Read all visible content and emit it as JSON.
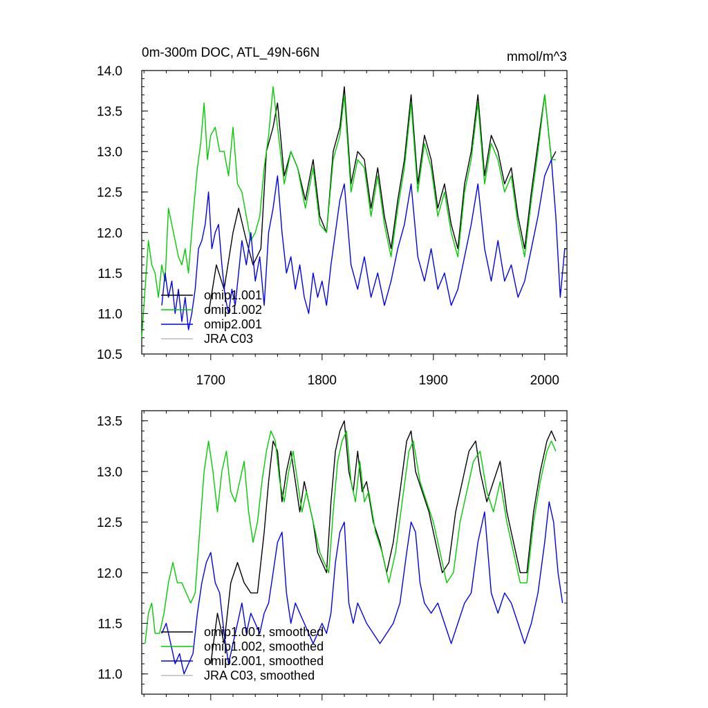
{
  "chart_data": [
    {
      "type": "line",
      "title": "0m-300m DOC, ATL_49N-66N",
      "units": "mmol/m^3",
      "xlim": [
        1638,
        2020
      ],
      "ylim": [
        10.5,
        14.0
      ],
      "yticks": [
        "10.5",
        "11.0",
        "11.5",
        "12.0",
        "12.5",
        "13.0",
        "13.5",
        "14.0"
      ],
      "yticks_values": [
        10.5,
        11.0,
        11.5,
        12.0,
        12.5,
        13.0,
        13.5,
        14.0
      ],
      "xticks_values": [
        1700,
        1800,
        1900,
        2000
      ],
      "xticks": [
        "1700",
        "1800",
        "1900",
        "2000"
      ],
      "legend": [
        "omip1.001",
        "omip1.002",
        "omip2.001",
        "JRA C03"
      ],
      "series": [
        {
          "name": "omip1.001",
          "color": "#000000",
          "x": [
            1698,
            1705,
            1712,
            1720,
            1725,
            1732,
            1738,
            1745,
            1750,
            1756,
            1760,
            1766,
            1772,
            1778,
            1785,
            1792,
            1798,
            1804,
            1810,
            1816,
            1820,
            1826,
            1832,
            1838,
            1844,
            1850,
            1856,
            1862,
            1868,
            1874,
            1880,
            1886,
            1892,
            1898,
            1904,
            1910,
            1916,
            1922,
            1928,
            1934,
            1940,
            1946,
            1952,
            1958,
            1964,
            1970,
            1976,
            1982,
            1988,
            1994,
            2000,
            2006,
            2010
          ],
          "values": [
            11.0,
            11.6,
            11.3,
            12.0,
            12.3,
            11.9,
            11.6,
            11.8,
            13.0,
            13.3,
            13.6,
            12.7,
            13.0,
            12.8,
            12.4,
            12.9,
            12.2,
            12.0,
            13.0,
            13.3,
            13.8,
            12.6,
            13.0,
            12.9,
            12.3,
            12.8,
            12.2,
            11.8,
            12.4,
            12.9,
            13.7,
            12.6,
            13.2,
            12.9,
            12.3,
            12.6,
            12.1,
            11.8,
            12.6,
            13.0,
            13.7,
            12.7,
            13.2,
            13.0,
            12.6,
            12.8,
            12.2,
            11.8,
            12.5,
            13.1,
            13.7,
            12.9,
            13.0
          ]
        },
        {
          "name": "omip1.002",
          "color": "#00cc00",
          "x": [
            1638,
            1641,
            1644,
            1647,
            1650,
            1653,
            1656,
            1659,
            1662,
            1665,
            1668,
            1671,
            1674,
            1677,
            1680,
            1684,
            1688,
            1691,
            1694,
            1697,
            1700,
            1704,
            1708,
            1712,
            1716,
            1720,
            1724,
            1728,
            1732,
            1736,
            1740,
            1744,
            1748,
            1752,
            1756,
            1760,
            1766,
            1772,
            1778,
            1785,
            1792,
            1798,
            1804,
            1810,
            1816,
            1820,
            1826,
            1832,
            1838,
            1844,
            1850,
            1856,
            1862,
            1868,
            1874,
            1880,
            1886,
            1892,
            1898,
            1904,
            1910,
            1916,
            1922,
            1928,
            1934,
            1940,
            1946,
            1952,
            1958,
            1964,
            1970,
            1976,
            1982,
            1988,
            1994,
            2000,
            2006,
            2010
          ],
          "values": [
            10.7,
            11.3,
            11.9,
            11.6,
            11.5,
            11.2,
            11.6,
            11.4,
            12.3,
            12.1,
            11.9,
            11.7,
            11.6,
            11.8,
            11.5,
            12.2,
            12.8,
            13.1,
            13.6,
            12.9,
            13.2,
            13.3,
            13.0,
            13.0,
            12.7,
            13.3,
            12.6,
            12.5,
            12.2,
            11.9,
            12.0,
            12.2,
            12.8,
            13.2,
            13.8,
            13.3,
            12.6,
            13.0,
            12.8,
            12.3,
            12.8,
            12.1,
            12.0,
            12.9,
            13.2,
            13.7,
            12.5,
            12.9,
            12.8,
            12.2,
            12.7,
            12.1,
            11.7,
            12.3,
            12.8,
            13.6,
            12.5,
            13.1,
            12.8,
            12.2,
            12.5,
            12.0,
            11.7,
            12.5,
            12.9,
            13.6,
            12.6,
            13.1,
            12.9,
            12.5,
            12.7,
            12.1,
            11.7,
            12.4,
            13.0,
            13.7,
            12.9,
            12.9
          ]
        },
        {
          "name": "omip2.001",
          "color": "#0000ee",
          "x": [
            1656,
            1659,
            1662,
            1665,
            1668,
            1671,
            1674,
            1677,
            1680,
            1683,
            1686,
            1689,
            1692,
            1695,
            1698,
            1701,
            1704,
            1707,
            1710,
            1713,
            1716,
            1719,
            1722,
            1725,
            1728,
            1732,
            1736,
            1740,
            1744,
            1748,
            1752,
            1756,
            1760,
            1764,
            1768,
            1772,
            1776,
            1780,
            1784,
            1788,
            1792,
            1796,
            1800,
            1804,
            1808,
            1812,
            1816,
            1820,
            1826,
            1832,
            1838,
            1844,
            1850,
            1856,
            1862,
            1868,
            1874,
            1880,
            1886,
            1892,
            1898,
            1904,
            1910,
            1916,
            1922,
            1928,
            1934,
            1940,
            1946,
            1952,
            1958,
            1964,
            1970,
            1976,
            1982,
            1988,
            1994,
            2000,
            2006,
            2010,
            2014,
            2018,
            2020
          ],
          "values": [
            11.1,
            11.5,
            11.2,
            11.4,
            11.0,
            11.3,
            10.9,
            11.2,
            10.8,
            11.0,
            11.3,
            11.8,
            11.9,
            12.1,
            12.5,
            11.8,
            12.0,
            12.1,
            11.6,
            11.2,
            11.0,
            11.3,
            11.1,
            11.5,
            11.9,
            11.6,
            12.0,
            11.4,
            11.7,
            11.1,
            12.0,
            12.3,
            12.7,
            12.0,
            11.5,
            11.7,
            11.3,
            11.6,
            11.2,
            11.0,
            11.5,
            11.2,
            11.4,
            11.1,
            11.6,
            12.0,
            12.4,
            12.6,
            11.6,
            11.3,
            11.7,
            11.2,
            11.5,
            11.1,
            11.4,
            11.8,
            12.1,
            12.6,
            11.7,
            11.4,
            11.8,
            11.3,
            11.5,
            11.1,
            11.3,
            11.7,
            12.1,
            12.6,
            11.8,
            11.4,
            11.9,
            11.4,
            11.6,
            11.2,
            11.4,
            11.8,
            12.2,
            12.7,
            12.9,
            12.2,
            11.2,
            11.8,
            11.8
          ]
        }
      ]
    },
    {
      "type": "line",
      "title": "",
      "xlim": [
        1638,
        2020
      ],
      "ylim": [
        10.8,
        13.6
      ],
      "yticks": [
        "11.0",
        "11.5",
        "12.0",
        "12.5",
        "13.0",
        "13.5"
      ],
      "yticks_values": [
        11.0,
        11.5,
        12.0,
        12.5,
        13.0,
        13.5
      ],
      "xticks_values": [
        1700,
        1800,
        1900,
        2000
      ],
      "legend": [
        "omip1.001, smoothed",
        "omip1.002, smoothed",
        "omip2.001, smoothed",
        "JRA C03, smoothed"
      ],
      "series": [
        {
          "name": "omip1.001, smoothed",
          "color": "#000000",
          "x": [
            1700,
            1706,
            1712,
            1718,
            1724,
            1730,
            1736,
            1742,
            1748,
            1752,
            1756,
            1760,
            1764,
            1768,
            1772,
            1776,
            1780,
            1784,
            1788,
            1792,
            1796,
            1800,
            1804,
            1808,
            1812,
            1816,
            1820,
            1824,
            1828,
            1832,
            1836,
            1840,
            1846,
            1852,
            1858,
            1864,
            1870,
            1876,
            1880,
            1884,
            1890,
            1896,
            1902,
            1908,
            1914,
            1920,
            1926,
            1932,
            1938,
            1942,
            1948,
            1954,
            1960,
            1966,
            1972,
            1978,
            1984,
            1990,
            1996,
            2002,
            2006,
            2010
          ],
          "values": [
            11.1,
            11.6,
            11.3,
            11.9,
            12.1,
            11.9,
            11.8,
            11.8,
            12.4,
            12.9,
            13.3,
            13.2,
            12.7,
            13.0,
            13.2,
            12.9,
            12.6,
            12.9,
            12.7,
            12.5,
            12.2,
            12.1,
            12.0,
            12.7,
            13.2,
            13.4,
            13.5,
            13.0,
            12.8,
            13.2,
            12.8,
            12.9,
            12.5,
            12.3,
            12.0,
            12.3,
            12.8,
            13.3,
            13.4,
            13.0,
            12.8,
            12.6,
            12.3,
            12.0,
            12.1,
            12.6,
            12.9,
            13.2,
            13.3,
            13.0,
            12.7,
            12.9,
            13.1,
            12.6,
            12.3,
            12.0,
            12.0,
            12.6,
            13.0,
            13.3,
            13.4,
            13.3
          ]
        },
        {
          "name": "omip1.002, smoothed",
          "color": "#00cc00",
          "x": [
            1641,
            1644,
            1647,
            1650,
            1654,
            1658,
            1662,
            1666,
            1670,
            1674,
            1678,
            1682,
            1686,
            1690,
            1694,
            1698,
            1702,
            1706,
            1710,
            1714,
            1718,
            1722,
            1726,
            1730,
            1734,
            1738,
            1742,
            1746,
            1750,
            1754,
            1758,
            1762,
            1766,
            1770,
            1774,
            1778,
            1782,
            1786,
            1790,
            1794,
            1798,
            1802,
            1806,
            1810,
            1814,
            1818,
            1822,
            1826,
            1830,
            1834,
            1838,
            1842,
            1848,
            1854,
            1860,
            1866,
            1872,
            1878,
            1882,
            1888,
            1894,
            1900,
            1906,
            1912,
            1918,
            1924,
            1930,
            1936,
            1942,
            1948,
            1954,
            1960,
            1966,
            1972,
            1978,
            1984,
            1990,
            1996,
            2002,
            2006,
            2010
          ],
          "values": [
            11.3,
            11.6,
            11.7,
            11.4,
            11.4,
            11.6,
            11.9,
            12.1,
            11.9,
            11.9,
            11.8,
            11.7,
            11.8,
            12.4,
            13.0,
            13.3,
            13.0,
            12.6,
            13.0,
            13.2,
            12.8,
            12.7,
            12.9,
            13.1,
            12.6,
            12.3,
            12.5,
            12.9,
            13.2,
            13.4,
            13.3,
            12.9,
            12.7,
            13.0,
            13.2,
            12.9,
            12.6,
            12.8,
            12.6,
            12.4,
            12.2,
            12.1,
            12.0,
            12.6,
            13.1,
            13.3,
            13.4,
            12.9,
            12.7,
            13.1,
            12.7,
            12.8,
            12.4,
            12.2,
            11.9,
            12.2,
            12.7,
            13.2,
            13.3,
            12.9,
            12.7,
            12.5,
            12.2,
            11.9,
            12.0,
            12.5,
            12.8,
            13.1,
            13.2,
            12.8,
            12.6,
            12.9,
            12.5,
            12.2,
            11.9,
            11.9,
            12.5,
            12.9,
            13.2,
            13.3,
            13.2
          ]
        },
        {
          "name": "omip2.001, smoothed",
          "color": "#0000ee",
          "x": [
            1656,
            1660,
            1664,
            1668,
            1672,
            1676,
            1680,
            1684,
            1688,
            1692,
            1696,
            1700,
            1704,
            1708,
            1712,
            1716,
            1720,
            1724,
            1728,
            1732,
            1736,
            1740,
            1744,
            1748,
            1752,
            1756,
            1760,
            1764,
            1768,
            1772,
            1776,
            1780,
            1784,
            1788,
            1792,
            1796,
            1800,
            1804,
            1808,
            1812,
            1816,
            1820,
            1824,
            1828,
            1832,
            1836,
            1840,
            1846,
            1852,
            1858,
            1864,
            1870,
            1876,
            1880,
            1884,
            1888,
            1892,
            1898,
            1904,
            1910,
            1916,
            1922,
            1928,
            1934,
            1940,
            1946,
            1952,
            1958,
            1964,
            1970,
            1976,
            1982,
            1988,
            1994,
            2000,
            2004,
            2008,
            2012,
            2016
          ],
          "values": [
            11.4,
            11.5,
            11.3,
            11.1,
            11.2,
            11.0,
            11.1,
            11.2,
            11.6,
            11.9,
            12.1,
            12.2,
            11.9,
            11.8,
            11.4,
            11.1,
            11.3,
            11.5,
            11.7,
            11.4,
            11.6,
            11.5,
            11.4,
            11.6,
            11.7,
            12.0,
            12.3,
            12.4,
            11.8,
            11.5,
            11.7,
            11.6,
            11.5,
            11.4,
            11.3,
            11.4,
            11.5,
            11.4,
            11.6,
            12.1,
            12.4,
            12.5,
            11.7,
            11.5,
            11.7,
            11.6,
            11.5,
            11.4,
            11.3,
            11.4,
            11.5,
            11.7,
            12.2,
            12.5,
            12.4,
            11.9,
            11.7,
            11.6,
            11.7,
            11.5,
            11.3,
            11.5,
            11.7,
            11.8,
            12.3,
            12.6,
            11.8,
            11.6,
            11.8,
            11.7,
            11.5,
            11.3,
            11.5,
            11.8,
            12.3,
            12.7,
            12.5,
            12.0,
            11.7
          ]
        }
      ]
    }
  ]
}
